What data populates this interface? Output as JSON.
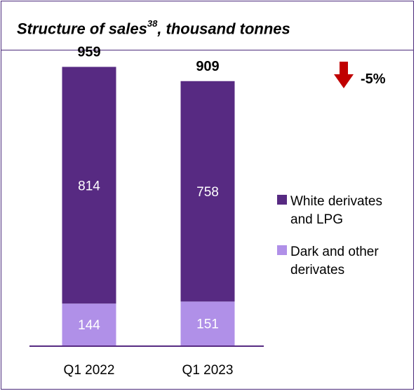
{
  "title": {
    "main": "Structure of sales",
    "superscript": "38",
    "suffix": ", thousand tonnes"
  },
  "change": {
    "label": "-5%",
    "direction": "down",
    "arrow_color": "#c00000"
  },
  "chart_data": {
    "type": "bar",
    "stacked": true,
    "categories": [
      "Q1 2022",
      "Q1 2023"
    ],
    "series": [
      {
        "name": "Dark and other derivates",
        "values": [
          144,
          151
        ],
        "color": "#b090e8"
      },
      {
        "name": "White derivates and LPG",
        "values": [
          814,
          758
        ],
        "color": "#572a82"
      }
    ],
    "totals": [
      959,
      909
    ],
    "ylim": [
      0,
      1000
    ],
    "grid": false,
    "legend": {
      "placement": "right",
      "entries": [
        {
          "lines": [
            "White derivates",
            "and LPG"
          ],
          "color": "#572a82"
        },
        {
          "lines": [
            "Dark and other",
            "derivates"
          ],
          "color": "#b090e8"
        }
      ]
    }
  }
}
